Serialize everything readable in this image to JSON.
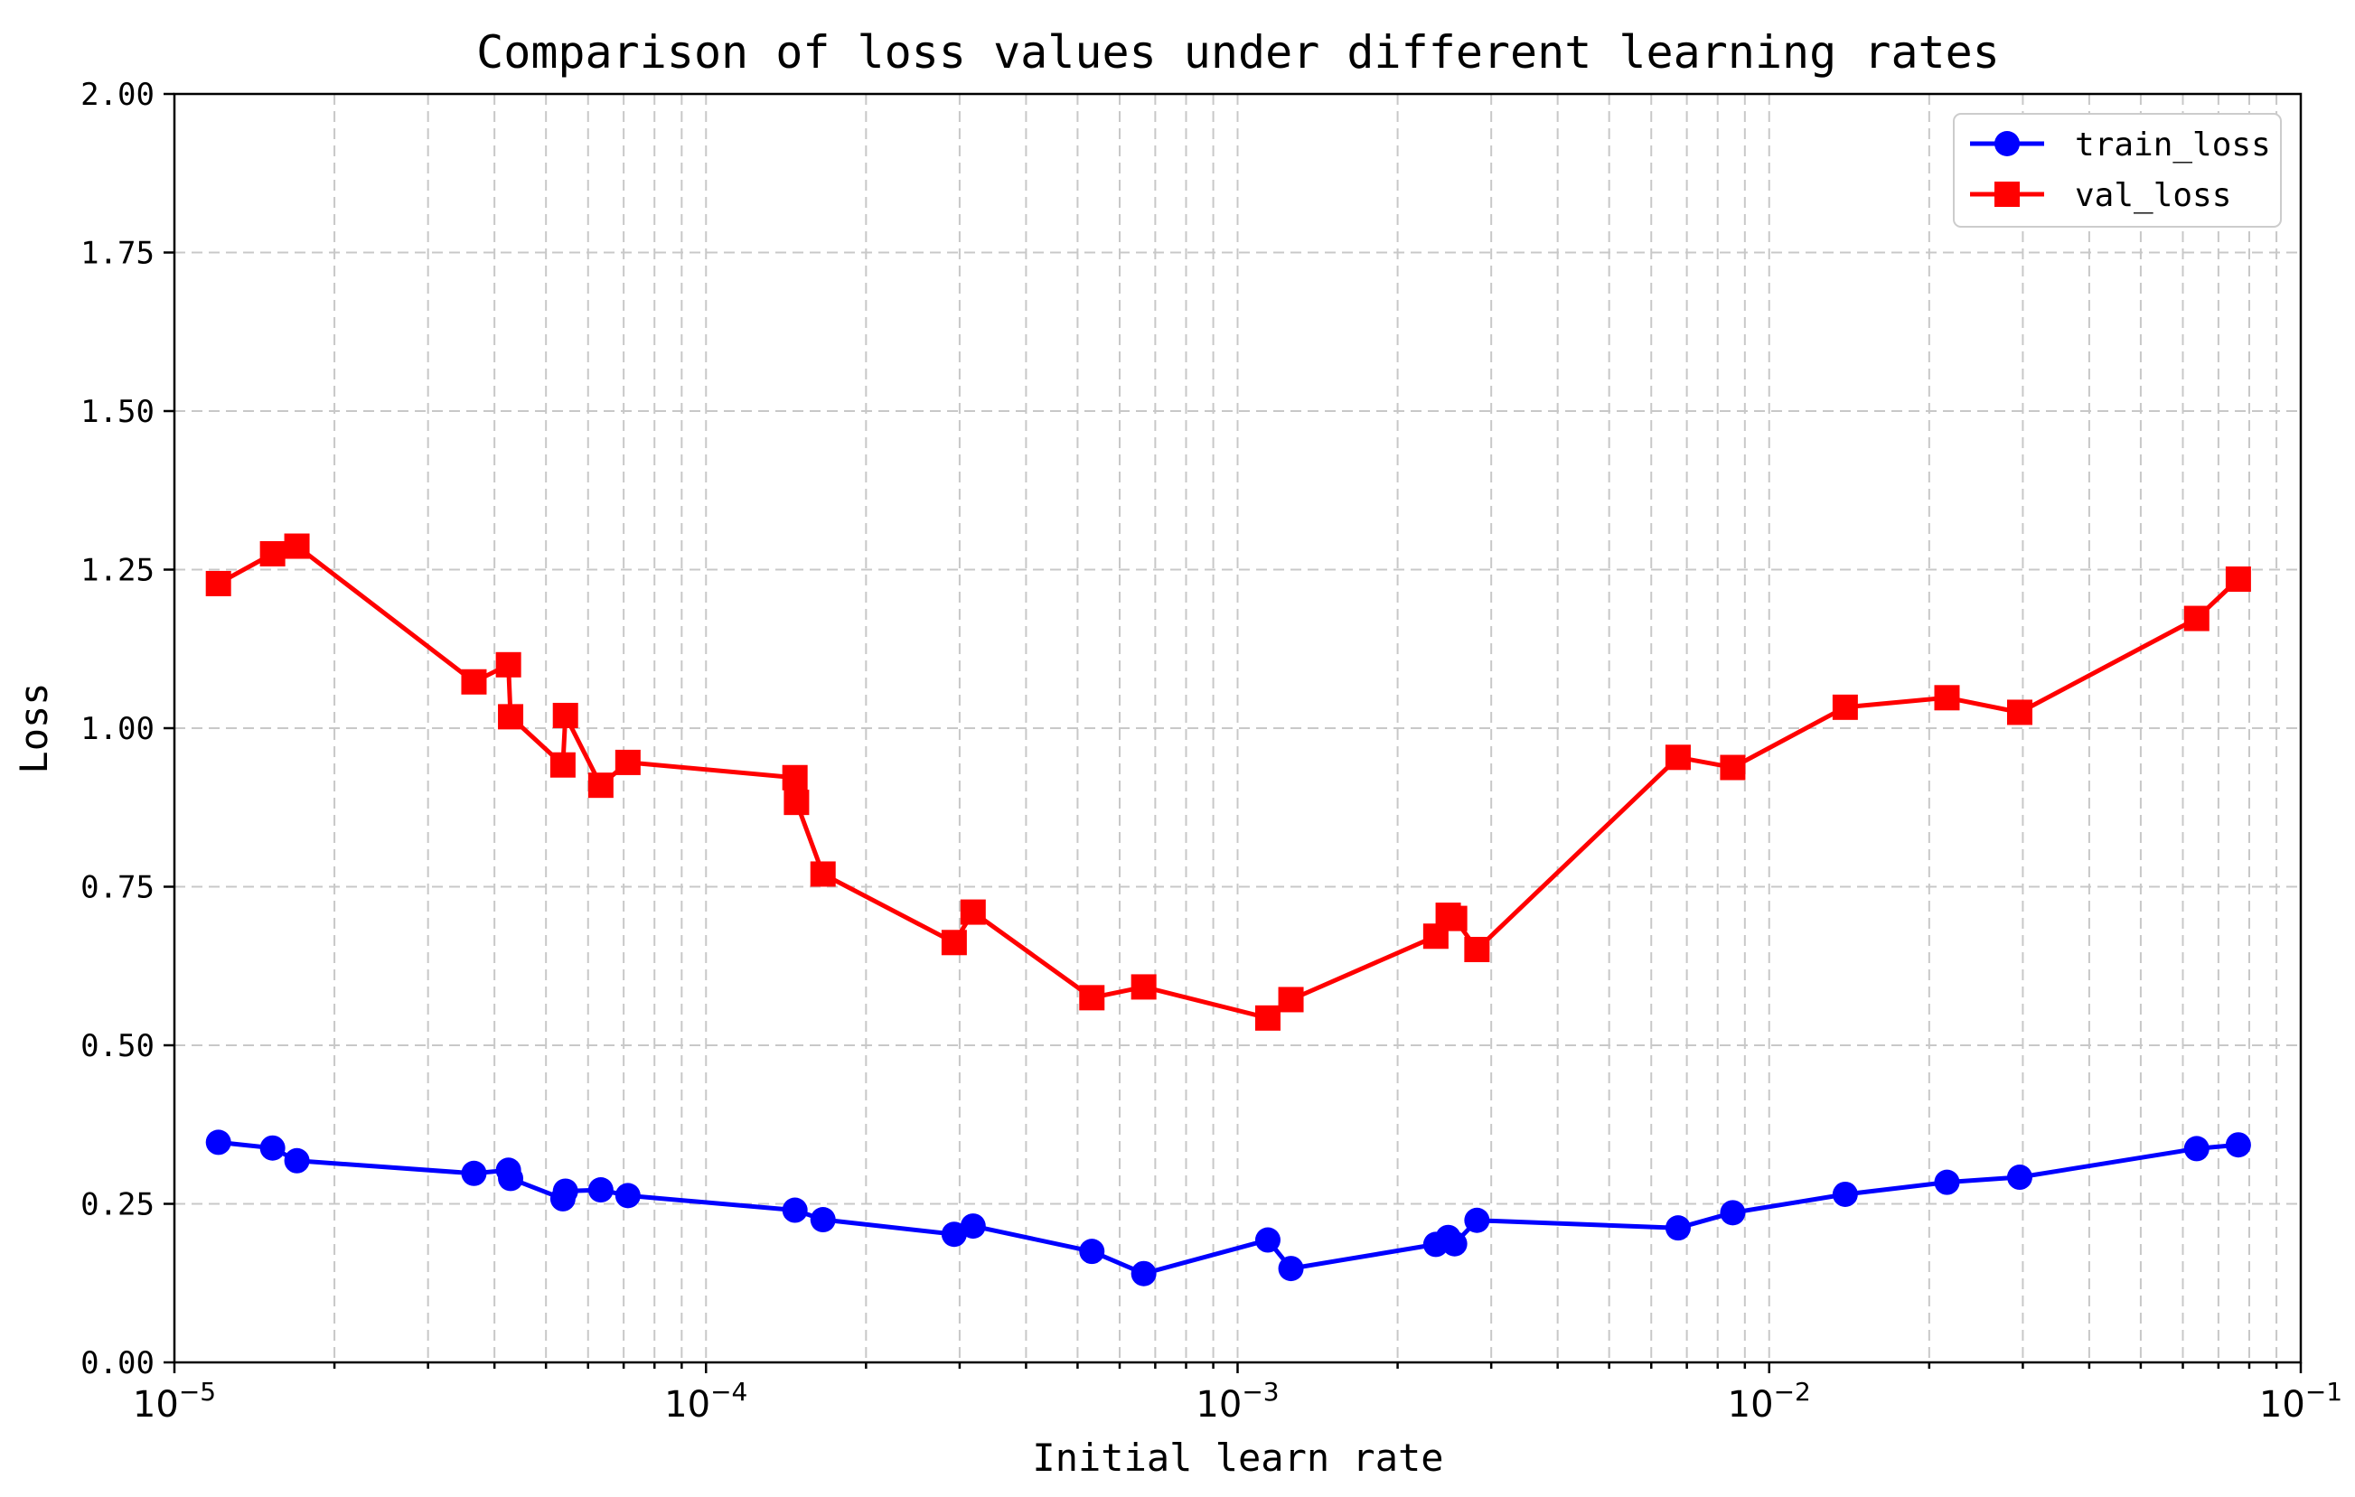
{
  "chart_data": {
    "type": "line",
    "title": "Comparison of loss values under different learning rates",
    "xlabel": "Initial learn rate",
    "ylabel": "Loss",
    "xscale": "log",
    "xlim": [
      1e-05,
      0.1
    ],
    "ylim": [
      0,
      2
    ],
    "grid": true,
    "legend_position": "top-right",
    "x_ticks": [
      {
        "value": 1e-05,
        "base": "10",
        "exp": "−5"
      },
      {
        "value": 0.0001,
        "base": "10",
        "exp": "−4"
      },
      {
        "value": 0.001,
        "base": "10",
        "exp": "−3"
      },
      {
        "value": 0.01,
        "base": "10",
        "exp": "−2"
      },
      {
        "value": 0.1,
        "base": "10",
        "exp": "−1"
      }
    ],
    "y_ticks": [
      {
        "value": 0,
        "label": "0.00"
      },
      {
        "value": 0.25,
        "label": "0.25"
      },
      {
        "value": 0.5,
        "label": "0.50"
      },
      {
        "value": 0.75,
        "label": "0.75"
      },
      {
        "value": 1.0,
        "label": "1.00"
      },
      {
        "value": 1.25,
        "label": "1.25"
      },
      {
        "value": 1.5,
        "label": "1.50"
      },
      {
        "value": 1.75,
        "label": "1.75"
      },
      {
        "value": 2.0,
        "label": "2.00"
      }
    ],
    "series": [
      {
        "name": "train_loss",
        "color": "#0000ff",
        "marker": "circle",
        "x": [
          1.21e-05,
          1.53e-05,
          1.7e-05,
          3.66e-05,
          4.25e-05,
          4.29e-05,
          5.38e-05,
          5.44e-05,
          6.34e-05,
          7.13e-05,
          0.000147,
          0.000166,
          0.000293,
          0.000318,
          0.000532,
          0.000666,
          0.00114,
          0.00126,
          0.00236,
          0.00249,
          0.00256,
          0.00282,
          0.00674,
          0.00854,
          0.0139,
          0.0216,
          0.0296,
          0.0637,
          0.0763
        ],
        "y": [
          0.347,
          0.338,
          0.318,
          0.298,
          0.303,
          0.29,
          0.258,
          0.27,
          0.272,
          0.263,
          0.24,
          0.225,
          0.202,
          0.215,
          0.175,
          0.14,
          0.193,
          0.148,
          0.186,
          0.197,
          0.187,
          0.224,
          0.212,
          0.236,
          0.265,
          0.284,
          0.292,
          0.337,
          0.343
        ]
      },
      {
        "name": "val_loss",
        "color": "#ff0000",
        "marker": "square",
        "x": [
          1.21e-05,
          1.53e-05,
          1.7e-05,
          3.66e-05,
          4.25e-05,
          4.29e-05,
          5.38e-05,
          5.44e-05,
          6.34e-05,
          7.13e-05,
          0.000147,
          0.000148,
          0.000166,
          0.000293,
          0.000318,
          0.000532,
          0.000666,
          0.00114,
          0.00126,
          0.00236,
          0.00249,
          0.00256,
          0.00282,
          0.00674,
          0.00854,
          0.0139,
          0.0216,
          0.0296,
          0.0637,
          0.0763
        ],
        "y": [
          1.228,
          1.275,
          1.287,
          1.073,
          1.1,
          1.018,
          0.942,
          1.02,
          0.91,
          0.946,
          0.922,
          0.883,
          0.77,
          0.662,
          0.71,
          0.575,
          0.592,
          0.543,
          0.572,
          0.672,
          0.705,
          0.7,
          0.651,
          0.954,
          0.938,
          1.033,
          1.048,
          1.025,
          1.173,
          1.235
        ]
      }
    ]
  }
}
